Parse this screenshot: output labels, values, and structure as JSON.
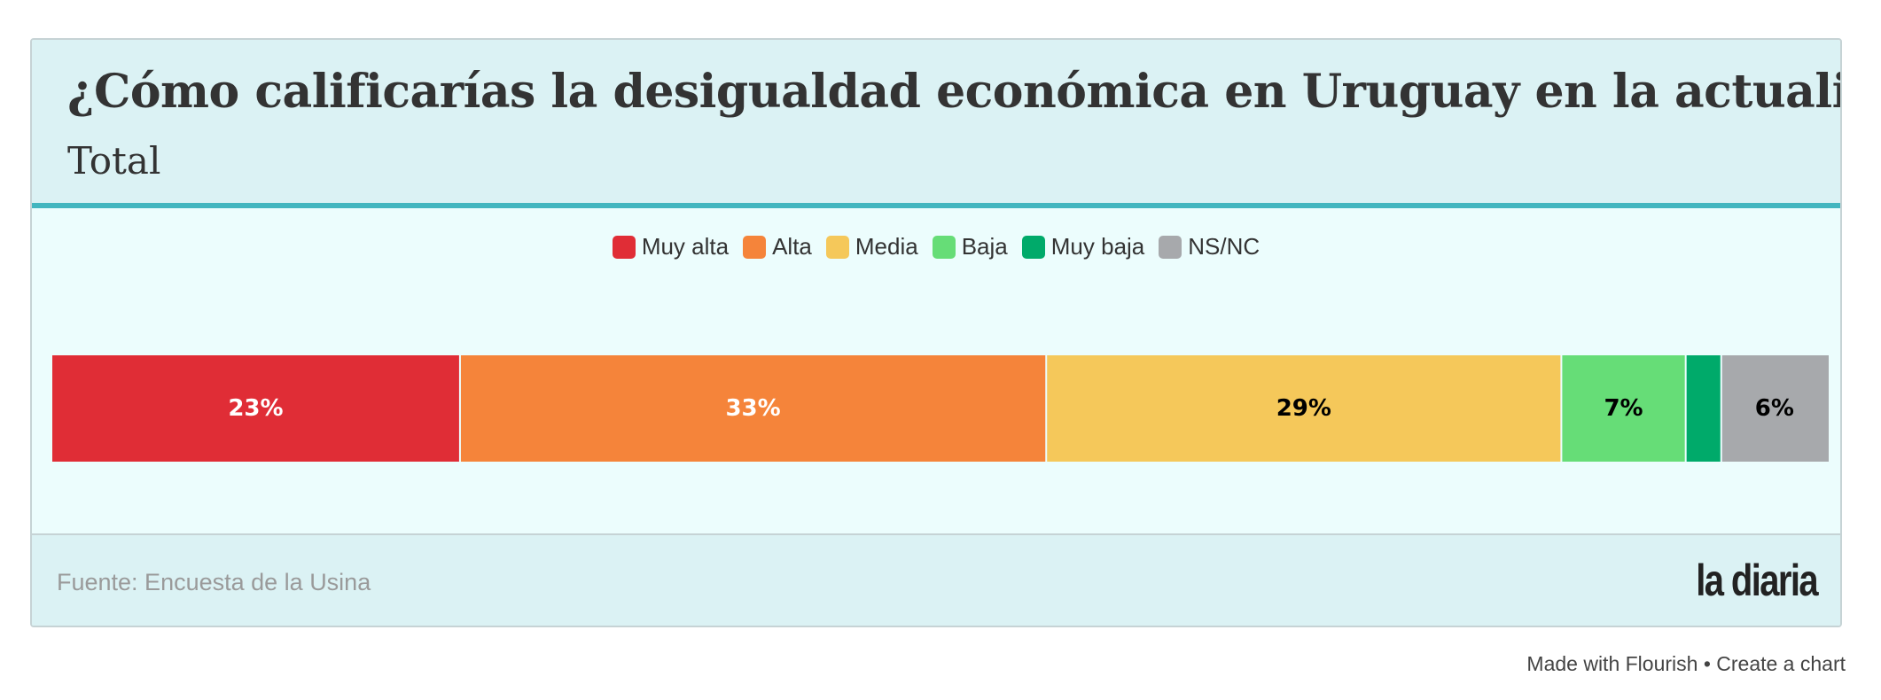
{
  "header": {
    "title": "¿Cómo calificarías la desigualdad económica en Uruguay en la actualidad?",
    "subtitle": "Total"
  },
  "footer": {
    "source": "Fuente: Encuesta de la Usina",
    "logo": "la diaria",
    "made_with": "Made with Flourish • Create a chart"
  },
  "chart_data": {
    "type": "bar",
    "orientation": "horizontal-stacked-100",
    "categories": [
      "Total"
    ],
    "series": [
      {
        "name": "Muy alta",
        "values": [
          23
        ],
        "label": "23%",
        "color": "#e02d36",
        "label_color": "#ffffff"
      },
      {
        "name": "Alta",
        "values": [
          33
        ],
        "label": "33%",
        "color": "#f5843a",
        "label_color": "#ffffff"
      },
      {
        "name": "Media",
        "values": [
          29
        ],
        "label": "29%",
        "color": "#f5c85a",
        "label_color": "#000000"
      },
      {
        "name": "Baja",
        "values": [
          7
        ],
        "label": "7%",
        "color": "#66dd77",
        "label_color": "#000000"
      },
      {
        "name": "Muy baja",
        "values": [
          2
        ],
        "label": "",
        "color": "#00aa6a",
        "label_color": "#000000"
      },
      {
        "name": "NS/NC",
        "values": [
          6
        ],
        "label": "6%",
        "color": "#a7a9ac",
        "label_color": "#000000"
      }
    ],
    "legend_position": "top-center",
    "grid": false
  }
}
